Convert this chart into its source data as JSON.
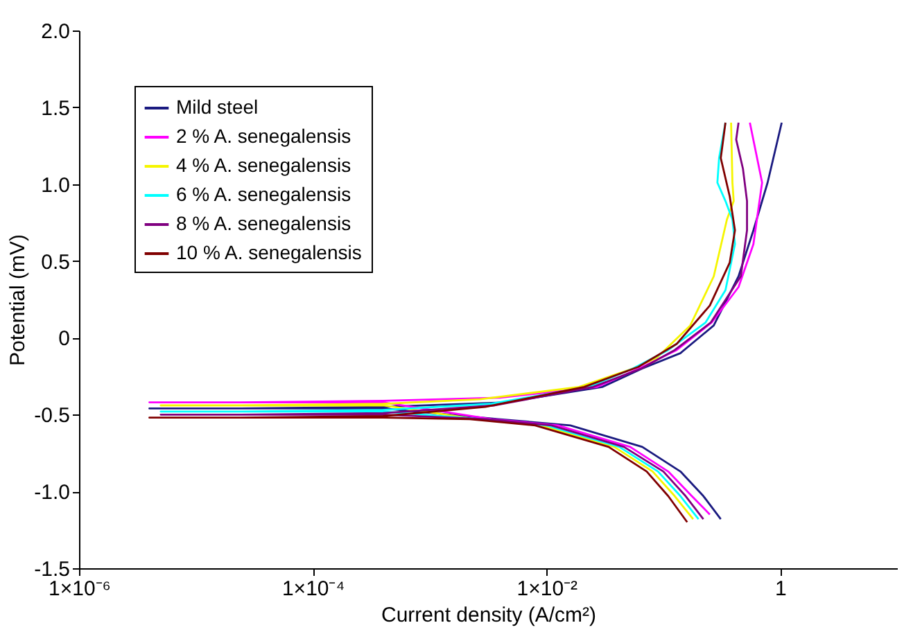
{
  "chart_data": {
    "type": "line",
    "xlabel": "Current density (A/cm²)",
    "ylabel": "Potential (mV)",
    "log": "x",
    "xlim": [
      1e-06,
      10
    ],
    "ylim": [
      -1.5,
      2
    ],
    "xticks": [
      {
        "value": 1e-06,
        "label": "1×10⁻⁶"
      },
      {
        "value": 0.0001,
        "label": "1×10⁻⁴"
      },
      {
        "value": 0.01,
        "label": "1×10⁻²"
      },
      1
    ],
    "yticks": [
      {
        "value": -1.5,
        "label": "-1.5"
      },
      {
        "value": -1,
        "label": "-1.0"
      },
      {
        "value": -0.5,
        "label": "-0.5"
      },
      {
        "value": 0,
        "label": "0"
      },
      {
        "value": 0.5,
        "label": "0.5"
      },
      {
        "value": 1,
        "label": "1.0"
      },
      {
        "value": 1.5,
        "label": "1.5"
      },
      {
        "value": 2,
        "label": "2.0"
      }
    ],
    "grid": false,
    "legend": "top left",
    "marker": "none",
    "line_style": "solid",
    "series": [
      {
        "name": "Mild steel",
        "color": "#1a1a80",
        "x": [
          0.31,
          0.22,
          0.14,
          0.066,
          0.016,
          0.0039,
          0.0004,
          2.4e-05,
          4e-06,
          2.4e-05,
          0.0004,
          0.0045,
          0.03,
          0.066,
          0.14,
          0.27,
          0.44,
          0.59,
          0.78,
          1.03
        ],
        "values": [
          -1.18,
          -1.03,
          -0.87,
          -0.71,
          -0.57,
          -0.53,
          -0.46,
          -0.46,
          -0.46,
          -0.46,
          -0.45,
          -0.42,
          -0.32,
          -0.2,
          -0.1,
          0.08,
          0.4,
          0.7,
          1.01,
          1.4
        ]
      },
      {
        "name": "2 % A. senegalensis",
        "color": "#ff00ff",
        "x": [
          0.25,
          0.175,
          0.11,
          0.052,
          0.0125,
          0.0034,
          0.0004,
          2.4e-05,
          4e-06,
          2.4e-05,
          0.0004,
          0.004,
          0.027,
          0.062,
          0.13,
          0.26,
          0.44,
          0.59,
          0.7,
          0.55
        ],
        "values": [
          -1.15,
          -1.03,
          -0.87,
          -0.71,
          -0.57,
          -0.53,
          -0.42,
          -0.42,
          -0.42,
          -0.42,
          -0.41,
          -0.39,
          -0.32,
          -0.2,
          -0.08,
          0.1,
          0.33,
          0.61,
          1.01,
          1.4
        ]
      },
      {
        "name": "4 % A. senegalensis",
        "color": "#f5f500",
        "x": [
          0.18,
          0.125,
          0.081,
          0.038,
          0.009,
          0.0025,
          0.0004,
          2.4e-05,
          5e-06,
          2.4e-05,
          0.0004,
          0.0027,
          0.019,
          0.055,
          0.088,
          0.17,
          0.27,
          0.35,
          0.4,
          0.39,
          0.38
        ],
        "values": [
          -1.18,
          -1.03,
          -0.87,
          -0.71,
          -0.57,
          -0.53,
          -0.44,
          -0.44,
          -0.44,
          -0.44,
          -0.43,
          -0.4,
          -0.32,
          -0.2,
          -0.13,
          0.08,
          0.4,
          0.77,
          0.89,
          1.01,
          1.4
        ]
      },
      {
        "name": "6 % A. senegalensis",
        "color": "#00ffff",
        "x": [
          0.2,
          0.14,
          0.09,
          0.042,
          0.01,
          0.0028,
          0.0004,
          2.4e-05,
          5e-06,
          2.4e-05,
          0.0004,
          0.0033,
          0.023,
          0.055,
          0.11,
          0.23,
          0.34,
          0.41,
          0.39,
          0.34,
          0.29,
          0.3,
          0.34
        ],
        "values": [
          -1.18,
          -1.03,
          -0.87,
          -0.71,
          -0.57,
          -0.53,
          -0.48,
          -0.48,
          -0.48,
          -0.48,
          -0.47,
          -0.43,
          -0.32,
          -0.2,
          -0.08,
          0.1,
          0.31,
          0.61,
          0.77,
          0.89,
          1.01,
          1.17,
          1.4
        ]
      },
      {
        "name": "8 % A. senegalensis",
        "color": "#800080",
        "x": [
          0.22,
          0.155,
          0.1,
          0.046,
          0.011,
          0.0031,
          0.0004,
          2.4e-05,
          5e-06,
          2.4e-05,
          0.0004,
          0.0036,
          0.025,
          0.065,
          0.125,
          0.255,
          0.46,
          0.52,
          0.52,
          0.48,
          0.42,
          0.44
        ],
        "values": [
          -1.18,
          -1.03,
          -0.87,
          -0.71,
          -0.57,
          -0.53,
          -0.5,
          -0.5,
          -0.5,
          -0.5,
          -0.49,
          -0.44,
          -0.32,
          -0.2,
          -0.08,
          0.1,
          0.4,
          0.7,
          0.89,
          1.1,
          1.29,
          1.4
        ]
      },
      {
        "name": "10 % A. senegalensis",
        "color": "#800000",
        "x": [
          0.16,
          0.11,
          0.072,
          0.034,
          0.008,
          0.0022,
          0.0004,
          2.4e-05,
          4e-06,
          2.4e-05,
          0.0004,
          0.003,
          0.021,
          0.061,
          0.13,
          0.25,
          0.37,
          0.41,
          0.37,
          0.31,
          0.34
        ],
        "values": [
          -1.2,
          -1.03,
          -0.87,
          -0.71,
          -0.57,
          -0.53,
          -0.52,
          -0.52,
          -0.52,
          -0.52,
          -0.51,
          -0.45,
          -0.32,
          -0.19,
          -0.04,
          0.21,
          0.49,
          0.7,
          0.92,
          1.17,
          1.4
        ]
      }
    ]
  }
}
